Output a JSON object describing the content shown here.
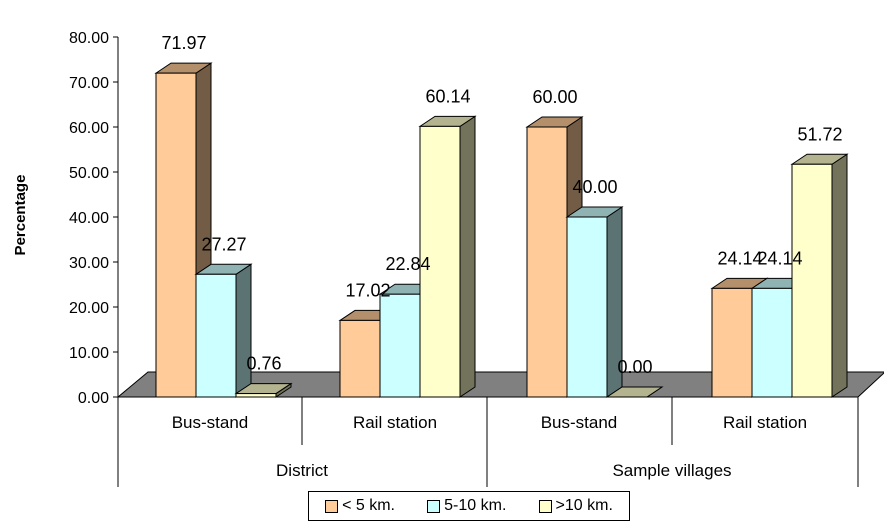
{
  "chart_data": {
    "type": "bar",
    "title": "",
    "ylabel": "Percentage",
    "xlabel": "",
    "ylim": [
      0,
      80
    ],
    "yticks": [
      "0.00",
      "10.00",
      "20.00",
      "30.00",
      "40.00",
      "50.00",
      "60.00",
      "70.00",
      "80.00"
    ],
    "grid": false,
    "legend_position": "bottom",
    "categories": [
      "Bus-stand",
      "Rail station",
      "Bus-stand",
      "Rail station"
    ],
    "groups": [
      "District",
      "Sample villages"
    ],
    "series": [
      {
        "name": "< 5 km.",
        "values": [
          71.97,
          17.02,
          60.0,
          24.14
        ],
        "labels": [
          "71.97",
          "17.02",
          "60.00",
          "24.14"
        ],
        "color": "#FFCC99"
      },
      {
        "name": "5-10 km.",
        "values": [
          27.27,
          22.84,
          40.0,
          24.14
        ],
        "labels": [
          "27.27",
          "22.84",
          "40.00",
          "24.14"
        ],
        "color": "#CCFFFF"
      },
      {
        "name": ">10 km.",
        "values": [
          0.76,
          60.14,
          0.0,
          51.72
        ],
        "labels": [
          "0.76",
          "60.14",
          "0.00",
          "51.72"
        ],
        "color": "#FFFFCC"
      }
    ],
    "floor_color": "#808080"
  }
}
